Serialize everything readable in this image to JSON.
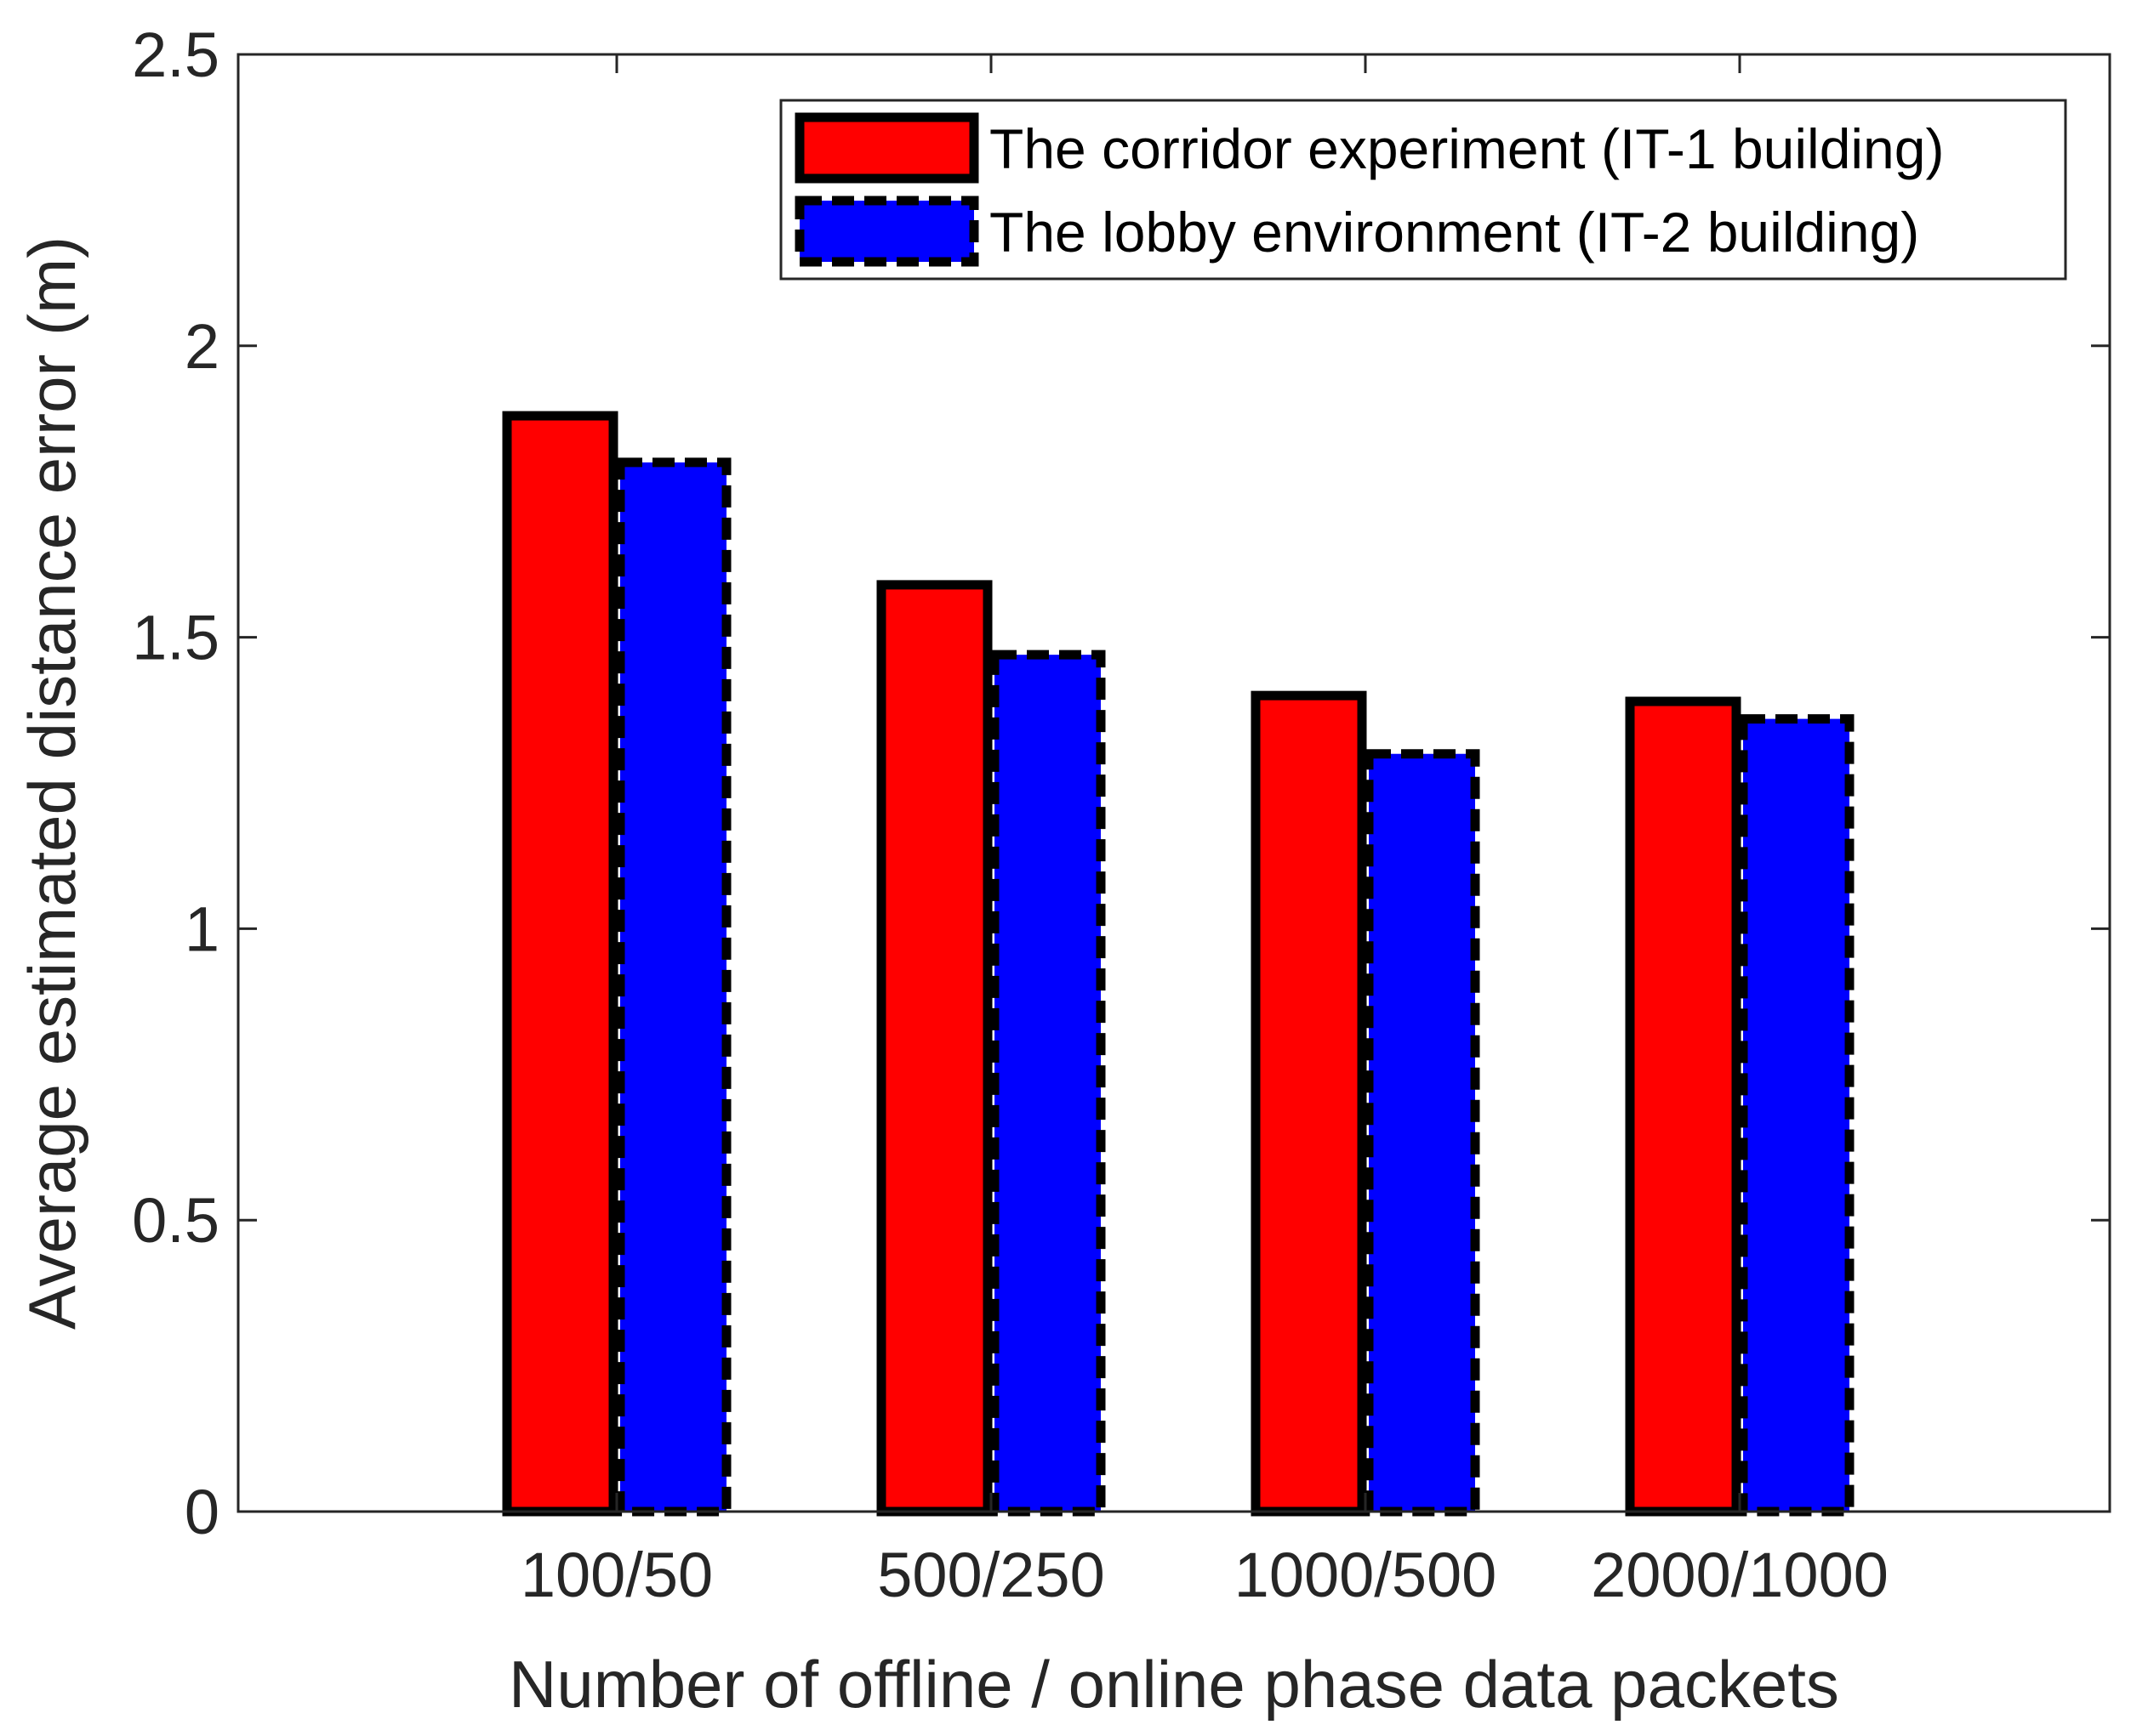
{
  "chart_data": {
    "type": "bar",
    "title": "",
    "xlabel": "Number of offline / online phase data packets",
    "ylabel": "Average estimated distance error (m)",
    "categories": [
      "100/50",
      "500/250",
      "1000/500",
      "2000/1000"
    ],
    "series": [
      {
        "name": "The corridor experiment (IT-1 building)",
        "values": [
          1.88,
          1.59,
          1.4,
          1.39
        ],
        "color": "#ff0000",
        "edge_style": "solid"
      },
      {
        "name": "The lobby environment (IT-2 building)",
        "values": [
          1.8,
          1.47,
          1.3,
          1.36
        ],
        "color": "#0000ff",
        "edge_style": "dashed"
      }
    ],
    "ylim": [
      0,
      2.5
    ],
    "yticks": [
      0,
      0.5,
      1,
      1.5,
      2,
      2.5
    ],
    "ytick_labels": [
      "0",
      "0.5",
      "1",
      "1.5",
      "2",
      "2.5"
    ],
    "grid": false,
    "legend_position": "top-right"
  }
}
